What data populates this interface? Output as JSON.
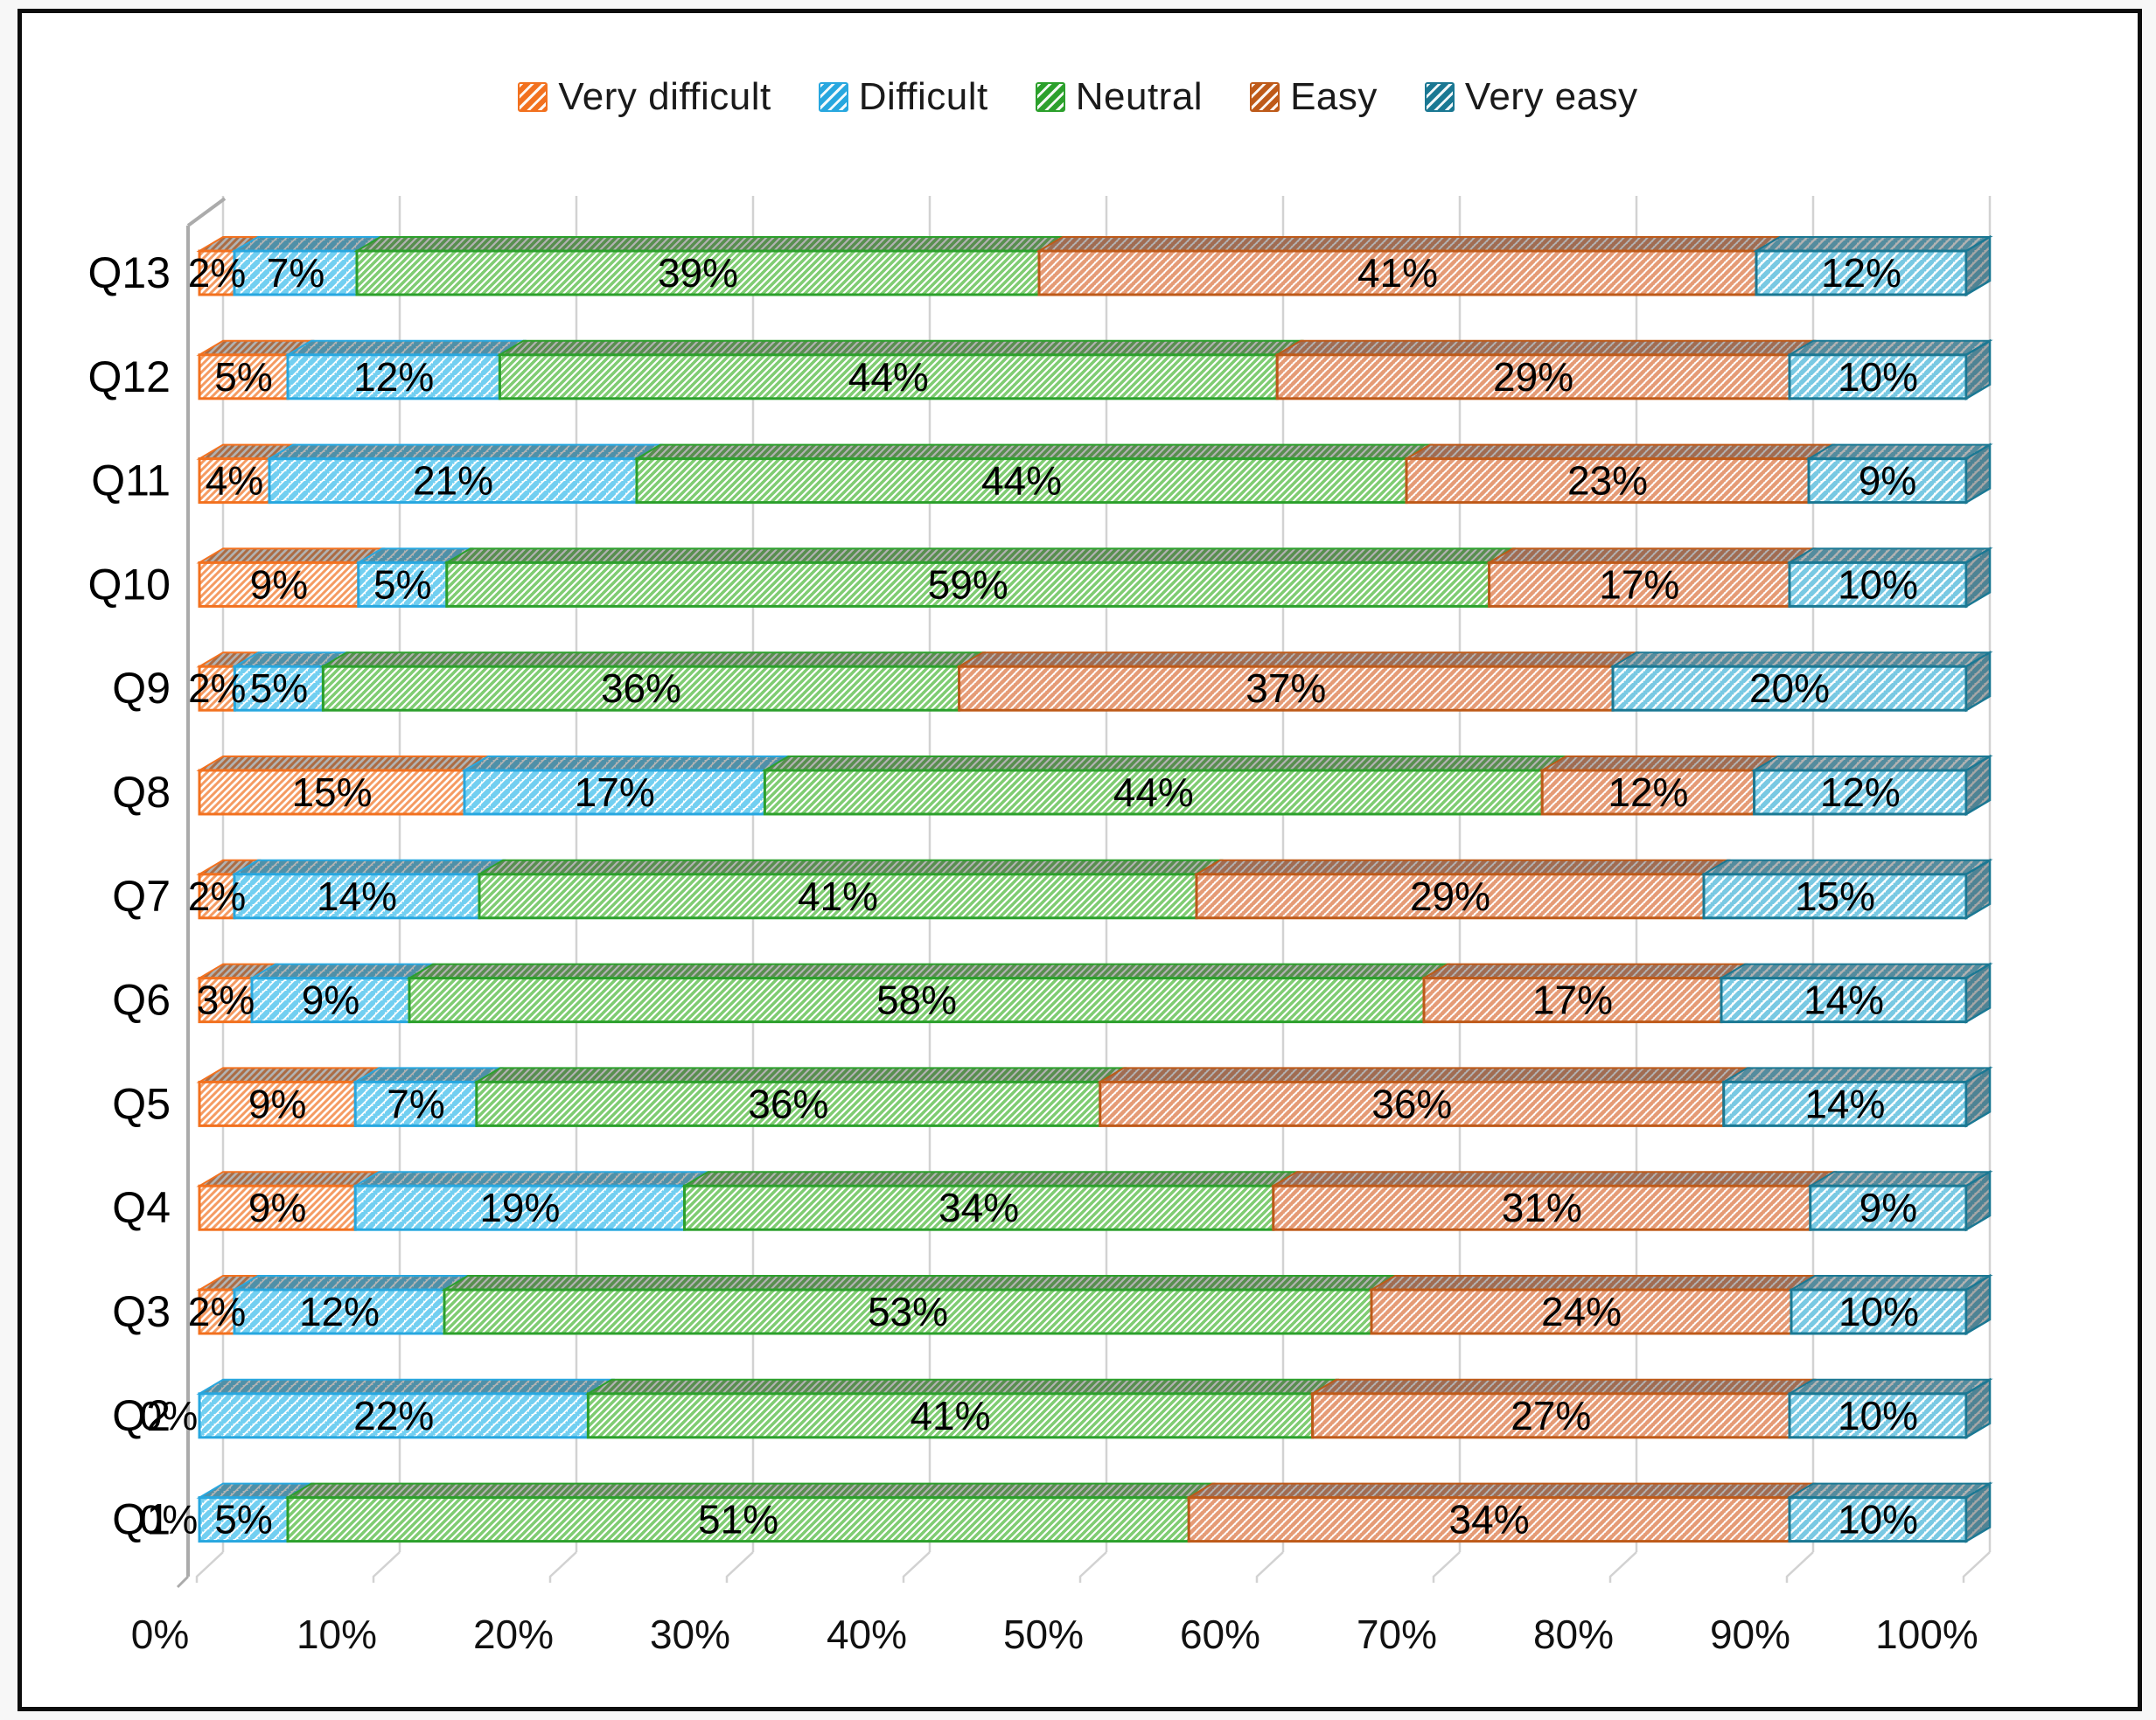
{
  "legend": {
    "items": [
      {
        "label": "Very difficult"
      },
      {
        "label": "Difficult"
      },
      {
        "label": "Neutral"
      },
      {
        "label": "Easy"
      },
      {
        "label": "Very easy"
      }
    ]
  },
  "chart_data": {
    "type": "bar",
    "variant": "100-percent-stacked-horizontal-3d-hatched",
    "title": "",
    "xlabel": "",
    "ylabel": "",
    "categories": [
      "Q13",
      "Q12",
      "Q11",
      "Q10",
      "Q9",
      "Q8",
      "Q7",
      "Q6",
      "Q5",
      "Q4",
      "Q3",
      "Q2",
      "Q1"
    ],
    "category_order": "top-to-bottom as displayed",
    "series": [
      {
        "name": "Very difficult",
        "color": "#F2711F",
        "stripe_color": "#F59B62",
        "values": [
          2,
          5,
          4,
          9,
          2,
          15,
          2,
          3,
          9,
          9,
          2,
          0,
          0
        ]
      },
      {
        "name": "Difficult",
        "color": "#28A7DF",
        "stripe_color": "#72CFF1",
        "values": [
          7,
          12,
          21,
          5,
          5,
          17,
          14,
          9,
          7,
          19,
          12,
          22,
          5
        ]
      },
      {
        "name": "Neutral",
        "color": "#2CA02C",
        "stripe_color": "#7FCC72",
        "values": [
          39,
          44,
          44,
          59,
          36,
          44,
          41,
          58,
          36,
          34,
          53,
          41,
          51
        ]
      },
      {
        "name": "Easy",
        "color": "#BE5A19",
        "stripe_color": "#E59B76",
        "values": [
          41,
          29,
          23,
          17,
          37,
          12,
          29,
          17,
          36,
          31,
          24,
          27,
          34
        ]
      },
      {
        "name": "Very easy",
        "color": "#1B7893",
        "stripe_color": "#79C9E3",
        "values": [
          12,
          10,
          9,
          10,
          20,
          12,
          15,
          14,
          14,
          9,
          10,
          10,
          10
        ]
      }
    ],
    "value_suffix": "%",
    "data_labels": "each segment labeled with its percentage",
    "x_axis": {
      "ticks": [
        "0%",
        "10%",
        "20%",
        "30%",
        "40%",
        "50%",
        "60%",
        "70%",
        "80%",
        "90%",
        "100%"
      ],
      "min": 0,
      "max": 100
    },
    "gridlines": true,
    "gridline_color": "#D2D2D2",
    "wall_color": "#ABABAB",
    "legend_position": "top"
  }
}
